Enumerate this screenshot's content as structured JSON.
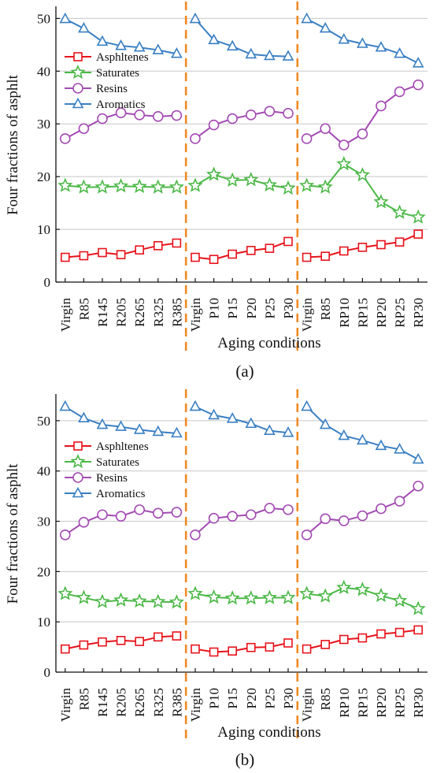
{
  "colors": {
    "Asphltenes": "#e8131b",
    "Saturates": "#4cb847",
    "Resins": "#a34ab3",
    "Aromatics": "#3a7fc2",
    "divider": "#f08a24",
    "grid": "#c8c8c8"
  },
  "chart_data": [
    {
      "type": "line",
      "caption": "(a)",
      "xlabel": "Aging conditions",
      "ylabel": "Four fractions of asphlt",
      "ylim": [
        0,
        52
      ],
      "yticks": [
        0,
        10,
        20,
        30,
        40,
        50
      ],
      "grid": true,
      "legend_position": "upper-left",
      "legend": [
        "Asphltenes",
        "Saturates",
        "Resins",
        "Aromatics"
      ],
      "groups": [
        {
          "categories": [
            "Virgin",
            "R85",
            "R145",
            "R205",
            "R265",
            "R325",
            "R385"
          ],
          "series": [
            {
              "name": "Asphltenes",
              "marker": "square",
              "values": [
                4.7,
                5.0,
                5.6,
                5.2,
                6.1,
                6.9,
                7.4
              ]
            },
            {
              "name": "Saturates",
              "marker": "star",
              "values": [
                18.3,
                18.0,
                18.0,
                18.2,
                18.1,
                18.0,
                18.0
              ]
            },
            {
              "name": "Resins",
              "marker": "circle",
              "values": [
                27.2,
                29.1,
                31.0,
                32.1,
                31.7,
                31.4,
                31.6
              ]
            },
            {
              "name": "Aromatics",
              "marker": "triangle",
              "values": [
                49.9,
                48.1,
                45.6,
                44.8,
                44.5,
                44.0,
                43.3
              ]
            }
          ]
        },
        {
          "categories": [
            "Virgin",
            "P10",
            "P15",
            "P20",
            "P25",
            "P30"
          ],
          "series": [
            {
              "name": "Asphltenes",
              "marker": "square",
              "values": [
                4.7,
                4.3,
                5.3,
                6.0,
                6.4,
                7.7
              ]
            },
            {
              "name": "Saturates",
              "marker": "star",
              "values": [
                18.3,
                20.4,
                19.3,
                19.4,
                18.4,
                17.8
              ]
            },
            {
              "name": "Resins",
              "marker": "circle",
              "values": [
                27.2,
                29.8,
                31.0,
                31.7,
                32.4,
                32.0
              ]
            },
            {
              "name": "Aromatics",
              "marker": "triangle",
              "values": [
                49.9,
                45.9,
                44.7,
                43.2,
                42.9,
                42.8
              ]
            }
          ]
        },
        {
          "categories": [
            "Virgin",
            "R85",
            "RP10",
            "RP15",
            "RP20",
            "RP25",
            "RP30"
          ],
          "series": [
            {
              "name": "Asphltenes",
              "marker": "square",
              "values": [
                4.7,
                4.9,
                5.9,
                6.6,
                7.1,
                7.6,
                9.1
              ]
            },
            {
              "name": "Saturates",
              "marker": "star",
              "values": [
                18.3,
                18.0,
                22.4,
                20.3,
                15.2,
                13.2,
                12.3
              ]
            },
            {
              "name": "Resins",
              "marker": "circle",
              "values": [
                27.2,
                29.1,
                26.0,
                28.1,
                33.4,
                36.1,
                37.4
              ]
            },
            {
              "name": "Aromatics",
              "marker": "triangle",
              "values": [
                49.9,
                48.1,
                46.0,
                45.2,
                44.5,
                43.3,
                41.5
              ]
            }
          ]
        }
      ]
    },
    {
      "type": "line",
      "caption": "(b)",
      "xlabel": "Aging conditions",
      "ylabel": "Four fractions of asphlt",
      "ylim": [
        0,
        55
      ],
      "yticks": [
        0,
        10,
        20,
        30,
        40,
        50
      ],
      "grid": true,
      "legend_position": "upper-left",
      "legend": [
        "Asphltenes",
        "Saturates",
        "Resins",
        "Aromatics"
      ],
      "groups": [
        {
          "categories": [
            "Virgin",
            "R85",
            "R145",
            "R205",
            "R265",
            "R325",
            "R385"
          ],
          "series": [
            {
              "name": "Asphltenes",
              "marker": "square",
              "values": [
                4.6,
                5.4,
                6.0,
                6.3,
                6.1,
                7.0,
                7.2
              ]
            },
            {
              "name": "Saturates",
              "marker": "star",
              "values": [
                15.6,
                14.8,
                14.0,
                14.3,
                14.1,
                14.0,
                13.9
              ]
            },
            {
              "name": "Resins",
              "marker": "circle",
              "values": [
                27.3,
                29.8,
                31.3,
                31.0,
                32.3,
                31.6,
                31.8
              ]
            },
            {
              "name": "Aromatics",
              "marker": "triangle",
              "values": [
                52.8,
                50.5,
                49.2,
                48.8,
                48.2,
                47.8,
                47.5
              ]
            }
          ]
        },
        {
          "categories": [
            "Virgin",
            "P10",
            "P15",
            "P20",
            "P25",
            "P30"
          ],
          "series": [
            {
              "name": "Asphltenes",
              "marker": "square",
              "values": [
                4.6,
                4.0,
                4.2,
                4.9,
                5.0,
                5.8
              ]
            },
            {
              "name": "Saturates",
              "marker": "star",
              "values": [
                15.6,
                14.9,
                14.7,
                14.7,
                14.8,
                14.8
              ]
            },
            {
              "name": "Resins",
              "marker": "circle",
              "values": [
                27.3,
                30.6,
                31.0,
                31.3,
                32.6,
                32.3
              ]
            },
            {
              "name": "Aromatics",
              "marker": "triangle",
              "values": [
                52.8,
                51.1,
                50.4,
                49.4,
                48.0,
                47.6
              ]
            }
          ]
        },
        {
          "categories": [
            "Virgin",
            "R85",
            "RP10",
            "RP15",
            "RP20",
            "RP25",
            "RP30"
          ],
          "series": [
            {
              "name": "Asphltenes",
              "marker": "square",
              "values": [
                4.6,
                5.5,
                6.5,
                6.8,
                7.6,
                7.9,
                8.4
              ]
            },
            {
              "name": "Saturates",
              "marker": "star",
              "values": [
                15.6,
                15.1,
                16.8,
                16.4,
                15.2,
                14.2,
                12.6
              ]
            },
            {
              "name": "Resins",
              "marker": "circle",
              "values": [
                27.3,
                30.5,
                30.1,
                31.1,
                32.5,
                34.0,
                37.0
              ]
            },
            {
              "name": "Aromatics",
              "marker": "triangle",
              "values": [
                52.8,
                49.2,
                47.0,
                46.1,
                45.0,
                44.3,
                42.3
              ]
            }
          ]
        }
      ]
    }
  ]
}
